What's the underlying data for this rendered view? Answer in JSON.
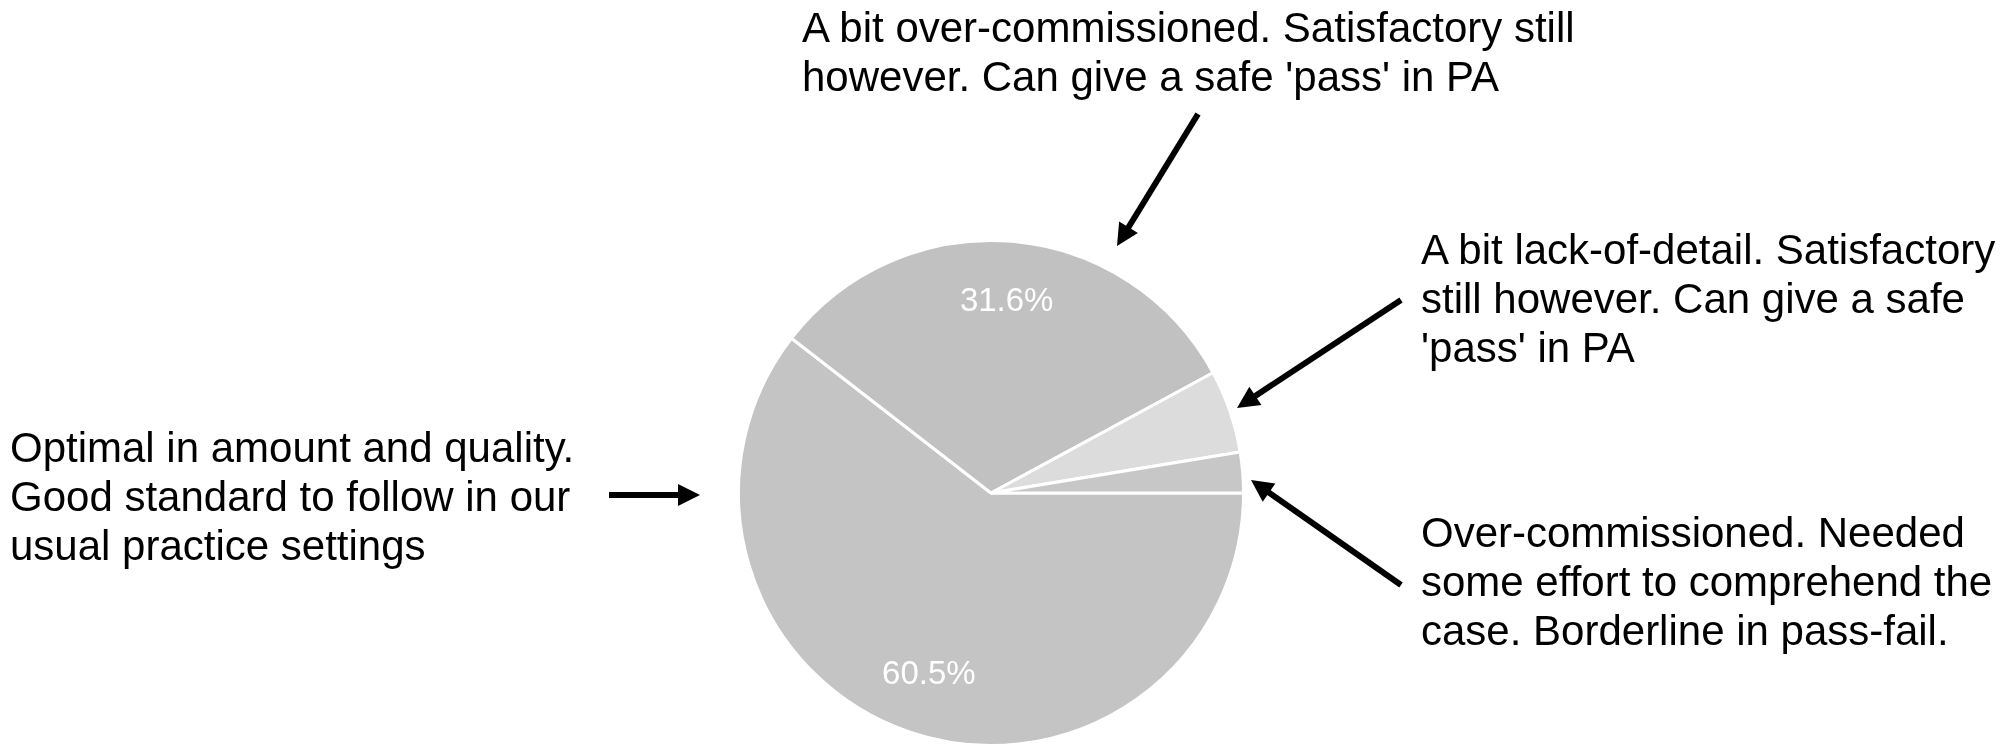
{
  "chart_data": {
    "type": "pie",
    "categories": [
      "Optimal in amount and quality. Good standard to follow in our usual practice settings",
      "A bit over-commissioned. Satisfactory still however. Can give a safe 'pass' in PA",
      "A bit lack-of-detail. Satisfactory still however. Can give a safe 'pass' in PA",
      "Over-commissioned. Needed some effort to comprehend the case. Borderline in pass-fail."
    ],
    "values": [
      60.5,
      31.6,
      5.3,
      2.6
    ],
    "colors": [
      "#c4c4c4",
      "#c1c1c1",
      "#dcdcdc",
      "#c7c7c7"
    ],
    "value_labels": [
      "60.5%",
      "31.6%",
      null,
      null
    ]
  }
}
